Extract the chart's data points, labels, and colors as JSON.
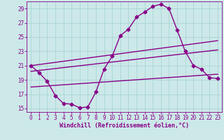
{
  "xlabel": "Windchill (Refroidissement éolien,°C)",
  "background_color": "#cce8e8",
  "line_color": "#880088",
  "xlim": [
    -0.5,
    23.5
  ],
  "ylim": [
    14.5,
    30.0
  ],
  "yticks": [
    15,
    17,
    19,
    21,
    23,
    25,
    27,
    29
  ],
  "xticks": [
    0,
    1,
    2,
    3,
    4,
    5,
    6,
    7,
    8,
    9,
    10,
    11,
    12,
    13,
    14,
    15,
    16,
    17,
    18,
    19,
    20,
    21,
    22,
    23
  ],
  "grid_color": "#aad4d4",
  "series": {
    "curve1": {
      "x": [
        0,
        1,
        2,
        3,
        4,
        5,
        6,
        7,
        8,
        9,
        10,
        11,
        12,
        13,
        14,
        15,
        16,
        17,
        18,
        19,
        20,
        21,
        22,
        23
      ],
      "y": [
        21.0,
        20.0,
        18.8,
        16.8,
        15.7,
        15.6,
        15.1,
        15.2,
        17.3,
        20.5,
        22.3,
        25.2,
        26.1,
        27.8,
        28.5,
        29.3,
        29.6,
        29.0,
        26.0,
        23.0,
        21.0,
        20.5,
        19.3,
        19.2
      ]
    },
    "line_upper": {
      "x": [
        0,
        23
      ],
      "y": [
        21.0,
        24.5
      ]
    },
    "line_middle": {
      "x": [
        0,
        23
      ],
      "y": [
        20.2,
        23.2
      ]
    },
    "line_lower": {
      "x": [
        0,
        23
      ],
      "y": [
        18.0,
        19.8
      ]
    }
  },
  "marker": "D",
  "marker_size": 2.5,
  "linewidth": 1.0,
  "tick_fontsize": 5.5,
  "xlabel_fontsize": 6.0
}
